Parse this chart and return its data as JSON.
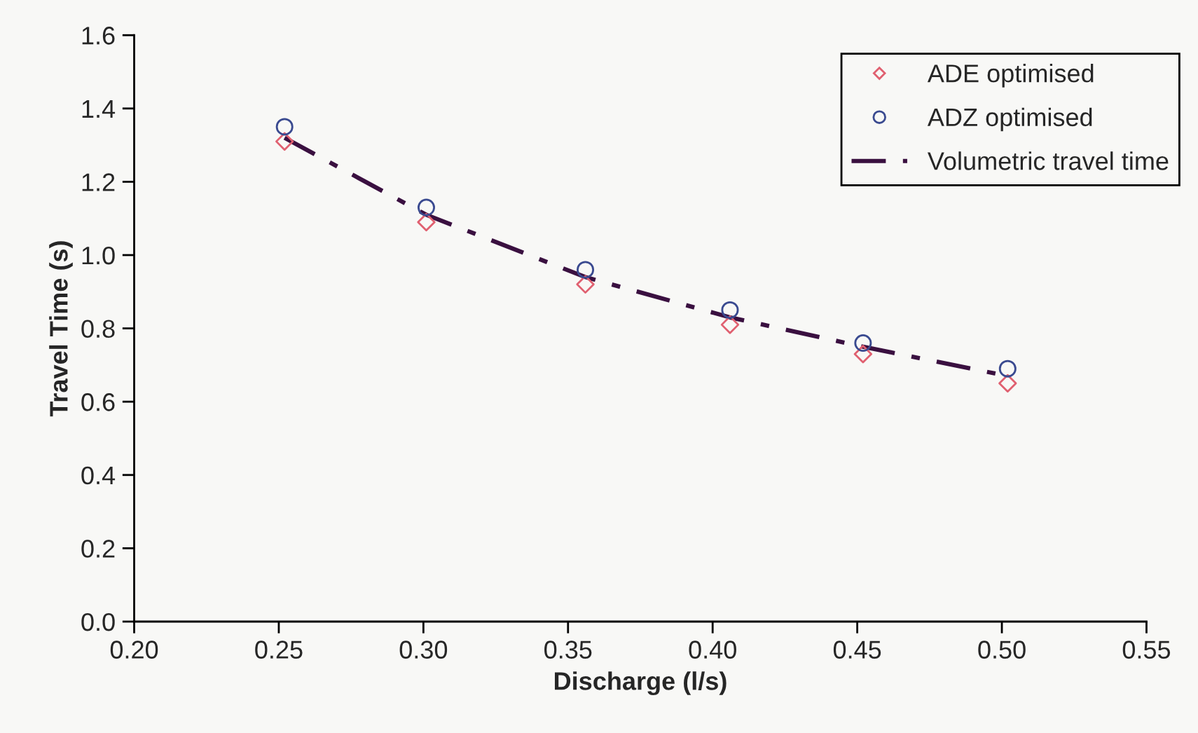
{
  "chart_data": {
    "type": "scatter",
    "xlabel": "Discharge (l/s)",
    "ylabel": "Travel Time (s)",
    "xlim": [
      0.2,
      0.55
    ],
    "xticks": [
      {
        "value": 0.2,
        "label": "0.20"
      },
      {
        "value": 0.25,
        "label": "0.25"
      },
      {
        "value": 0.3,
        "label": "0.30"
      },
      {
        "value": 0.35,
        "label": "0.35"
      },
      {
        "value": 0.4,
        "label": "0.40"
      },
      {
        "value": 0.45,
        "label": "0.45"
      },
      {
        "value": 0.5,
        "label": "0.50"
      },
      {
        "value": 0.55,
        "label": "0.55"
      }
    ],
    "ylim": [
      0,
      1.6
    ],
    "yticks": [
      {
        "value": 0,
        "label": "0.0"
      },
      {
        "value": 0.2,
        "label": "0.2"
      },
      {
        "value": 0.4,
        "label": "0.4"
      },
      {
        "value": 0.6,
        "label": "0.6"
      },
      {
        "value": 0.8,
        "label": "0.8"
      },
      {
        "value": 1.0,
        "label": "1.0"
      },
      {
        "value": 1.2,
        "label": "1.2"
      },
      {
        "value": 1.4,
        "label": "1.4"
      },
      {
        "value": 1.6,
        "label": "1.6"
      }
    ],
    "x": [
      0.252,
      0.301,
      0.356,
      0.406,
      0.452,
      0.502
    ],
    "series": [
      {
        "name": "ADE optimised",
        "marker": "diamond",
        "color": "#e06070",
        "values": [
          1.31,
          1.09,
          0.92,
          0.81,
          0.73,
          0.65
        ]
      },
      {
        "name": "ADZ optimised",
        "marker": "circle",
        "color": "#3a4a90",
        "values": [
          1.35,
          1.13,
          0.96,
          0.85,
          0.76,
          0.69
        ]
      },
      {
        "name": "Volumetric travel time",
        "type": "line",
        "line_style": "dashdot",
        "color": "#3a1040",
        "values": [
          1.32,
          1.11,
          0.94,
          0.83,
          0.75,
          0.67
        ]
      }
    ],
    "grid": false,
    "legend": "top right"
  }
}
